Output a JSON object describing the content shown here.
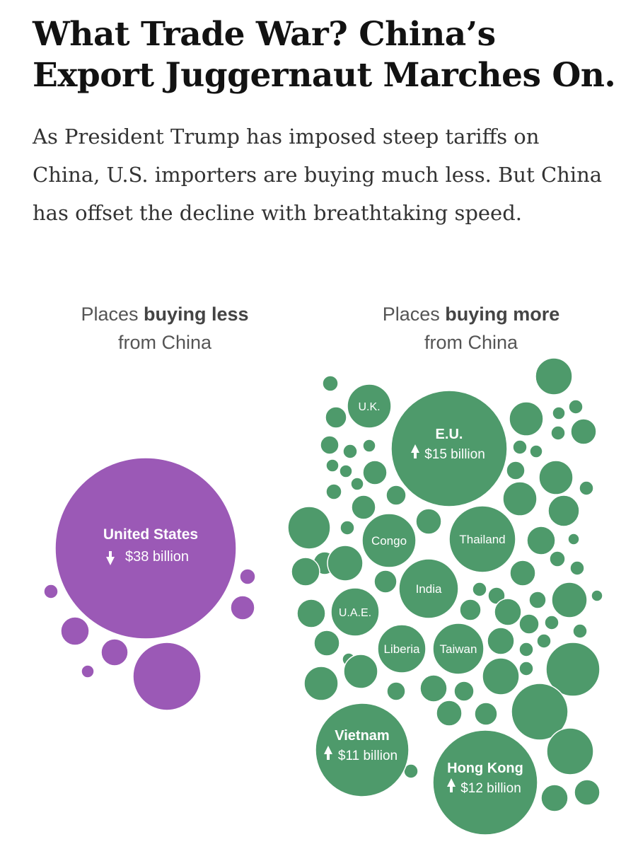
{
  "headline": "What Trade War? China’s Export Juggernaut Marches On.",
  "summary": "As President Trump has imposed steep tariffs on China, U.S. importers are buying much less. But China has offset the decline with breathtaking speed.",
  "groups": {
    "less": {
      "title_prefix": "Places ",
      "title_bold": "buying less",
      "title_suffix": "from China"
    },
    "more": {
      "title_prefix": "Places ",
      "title_bold": "buying more",
      "title_suffix": "from China"
    }
  },
  "colors": {
    "less": "#9b59b6",
    "more": "#4e9a6b",
    "text": "#ffffff"
  },
  "chart_data": {
    "type": "bubble",
    "unit": "billion",
    "series": [
      {
        "group": "less",
        "color": "#9b59b6",
        "direction": "down",
        "labeled": [
          {
            "name": "United States",
            "value_label": "$38 billion"
          }
        ]
      },
      {
        "group": "more",
        "color": "#4e9a6b",
        "direction": "up",
        "labeled": [
          {
            "name": "E.U.",
            "value_label": "$15 billion"
          },
          {
            "name": "Hong Kong",
            "value_label": "$12 billion"
          },
          {
            "name": "Vietnam",
            "value_label": "$11 billion"
          },
          {
            "name": "U.K."
          },
          {
            "name": "Thailand"
          },
          {
            "name": "Congo"
          },
          {
            "name": "India"
          },
          {
            "name": "U.A.E."
          },
          {
            "name": "Liberia"
          },
          {
            "name": "Taiwan"
          }
        ]
      }
    ]
  }
}
